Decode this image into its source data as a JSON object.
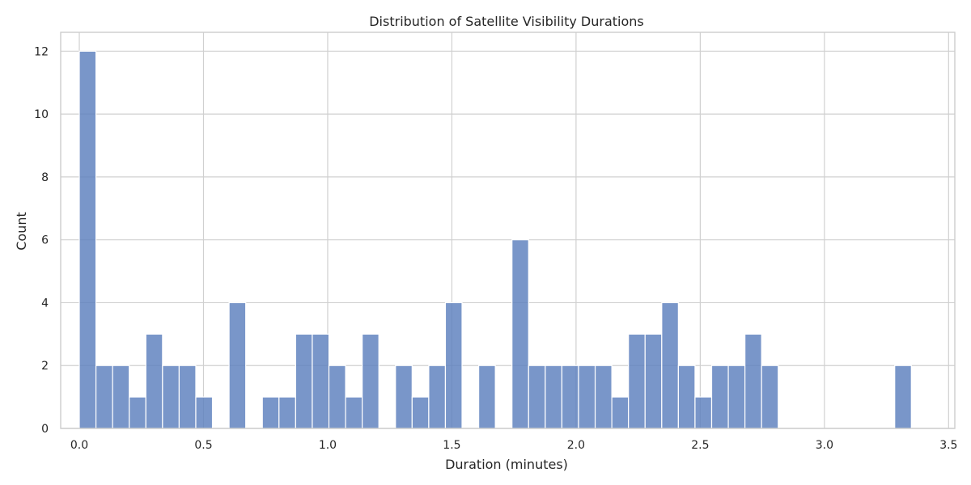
{
  "chart_data": {
    "type": "bar",
    "subtype": "histogram",
    "title": "Distribution of Satellite Visibility Durations",
    "xlabel": "Duration (minutes)",
    "ylabel": "Count",
    "xlim": [
      -0.075,
      3.525
    ],
    "ylim": [
      0,
      12.6
    ],
    "xticks": [
      0.0,
      0.5,
      1.0,
      1.5,
      2.0,
      2.5,
      3.0,
      3.5
    ],
    "xtick_labels": [
      "0.0",
      "0.5",
      "1.0",
      "1.5",
      "2.0",
      "2.5",
      "3.0",
      "3.5"
    ],
    "yticks": [
      0,
      2,
      4,
      6,
      8,
      10,
      12
    ],
    "ytick_labels": [
      "0",
      "2",
      "4",
      "6",
      "8",
      "10",
      "12"
    ],
    "grid": true,
    "bar_color": "#4c72b0",
    "bin_edges": [
      0.0,
      0.067,
      0.134,
      0.201,
      0.268,
      0.335,
      0.402,
      0.469,
      0.536,
      0.603,
      0.67,
      0.737,
      0.804,
      0.871,
      0.938,
      1.005,
      1.072,
      1.139,
      1.206,
      1.273,
      1.34,
      1.407,
      1.474,
      1.541,
      1.608,
      1.675,
      1.742,
      1.809,
      1.876,
      1.943,
      2.01,
      2.077,
      2.144,
      2.211,
      2.278,
      2.345,
      2.412,
      2.479,
      2.546,
      2.613,
      2.68,
      2.747,
      2.814,
      2.881,
      2.948,
      3.015,
      3.082,
      3.149,
      3.216,
      3.283,
      3.35
    ],
    "counts": [
      12,
      2,
      2,
      1,
      3,
      2,
      2,
      1,
      0,
      4,
      0,
      1,
      1,
      3,
      3,
      2,
      1,
      3,
      0,
      2,
      1,
      2,
      4,
      0,
      2,
      0,
      6,
      2,
      2,
      2,
      2,
      2,
      1,
      3,
      3,
      4,
      2,
      1,
      2,
      2,
      3,
      2,
      0,
      0,
      0,
      0,
      0,
      0,
      0,
      2
    ]
  }
}
